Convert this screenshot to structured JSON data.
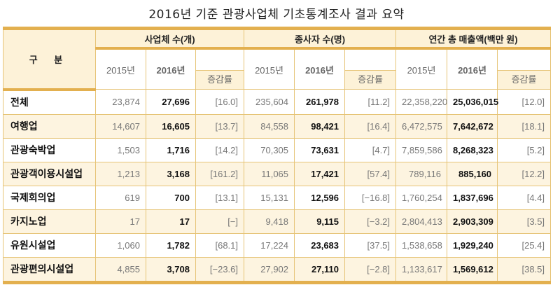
{
  "title": "2016년 기준 관광사업체 기초통계조사 결과 요약",
  "header": {
    "category": "구 분",
    "groups": [
      "사업체 수(개)",
      "종사자 수(명)",
      "연간 총 매출액(백만 원)"
    ],
    "year2015": "2015년",
    "year2016": "2016년",
    "rate": "증감률"
  },
  "rows": [
    {
      "label": "전체",
      "v": [
        "23,874",
        "27,696",
        "[16.0]",
        "235,604",
        "261,978",
        "[11.2]",
        "22,358,220",
        "25,036,015",
        "[12.0]"
      ]
    },
    {
      "label": "여행업",
      "v": [
        "14,607",
        "16,605",
        "[13.7]",
        "84,558",
        "98,421",
        "[16.4]",
        "6,472,575",
        "7,642,672",
        "[18.1]"
      ]
    },
    {
      "label": "관광숙박업",
      "v": [
        "1,503",
        "1,716",
        "[14.2]",
        "70,305",
        "73,631",
        "[4.7]",
        "7,859,586",
        "8,268,323",
        "[5.2]"
      ]
    },
    {
      "label": "관광객이용시설업",
      "v": [
        "1,213",
        "3,168",
        "[161.2]",
        "11,065",
        "17,421",
        "[57.4]",
        "789,116",
        "885,160",
        "[12.2]"
      ]
    },
    {
      "label": "국제회의업",
      "v": [
        "619",
        "700",
        "[13.1]",
        "15,131",
        "12,596",
        "[−16.8]",
        "1,760,254",
        "1,837,696",
        "[4.4]"
      ]
    },
    {
      "label": "카지노업",
      "v": [
        "17",
        "17",
        "[−]",
        "9,418",
        "9,115",
        "[−3.2]",
        "2,804,413",
        "2,903,309",
        "[3.5]"
      ]
    },
    {
      "label": "유원시설업",
      "v": [
        "1,060",
        "1,782",
        "[68.1]",
        "17,224",
        "23,683",
        "[37.5]",
        "1,538,658",
        "1,929,240",
        "[25.4]"
      ]
    },
    {
      "label": "관광편의시설업",
      "v": [
        "4,855",
        "3,708",
        "[−23.6]",
        "27,902",
        "27,110",
        "[−2.8]",
        "1,133,617",
        "1,569,612",
        "[38.5]"
      ]
    }
  ]
}
